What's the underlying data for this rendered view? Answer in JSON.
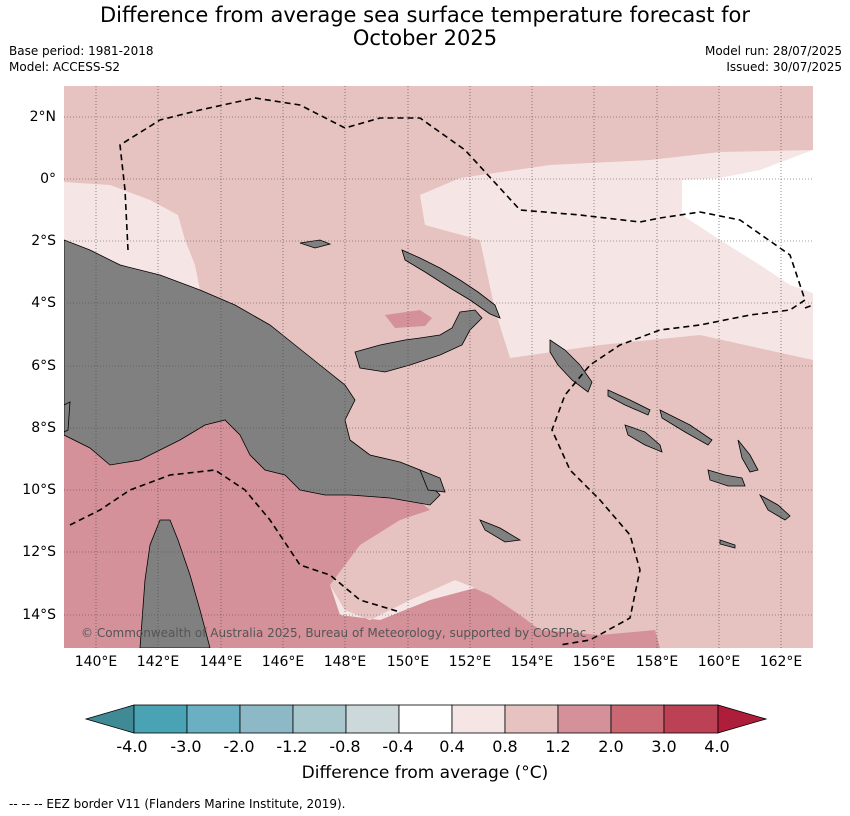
{
  "title_line1": "Difference from average sea surface temperature forecast for",
  "title_line2": "October 2025",
  "base_period": "Base period: 1981-2018",
  "model": "Model: ACCESS-S2",
  "model_run": "Model run: 28/07/2025",
  "issued": "Issued: 30/07/2025",
  "copyright": "© Commonwealth of Australia 2025, Bureau of Meteorology, supported by COSPPac",
  "lat_labels": [
    "2°N",
    "0°",
    "2°S",
    "4°S",
    "6°S",
    "8°S",
    "10°S",
    "12°S",
    "14°S"
  ],
  "lon_labels": [
    "140°E",
    "142°E",
    "144°E",
    "146°E",
    "148°E",
    "150°E",
    "152°E",
    "154°E",
    "156°E",
    "158°E",
    "160°E",
    "162°E"
  ],
  "colorbar": {
    "ticks": [
      "-4.0",
      "-3.0",
      "-2.0",
      "-1.2",
      "-0.8",
      "-0.4",
      "0.4",
      "0.8",
      "1.2",
      "2.0",
      "3.0",
      "4.0"
    ],
    "title": "Difference from average (°C)",
    "colors": [
      "#3f8a94",
      "#4aa3b4",
      "#6bb0c2",
      "#8db9c6",
      "#a9c8cd",
      "#cdd8db",
      "#ffffff",
      "#f5e6e5",
      "#e6c3c0",
      "#d4919a",
      "#c96872",
      "#bd4155",
      "#ae1d3a"
    ]
  },
  "land_color": "#808080",
  "footer": "--  --  -- EEZ border V11 (Flanders Marine Institute, 2019)."
}
